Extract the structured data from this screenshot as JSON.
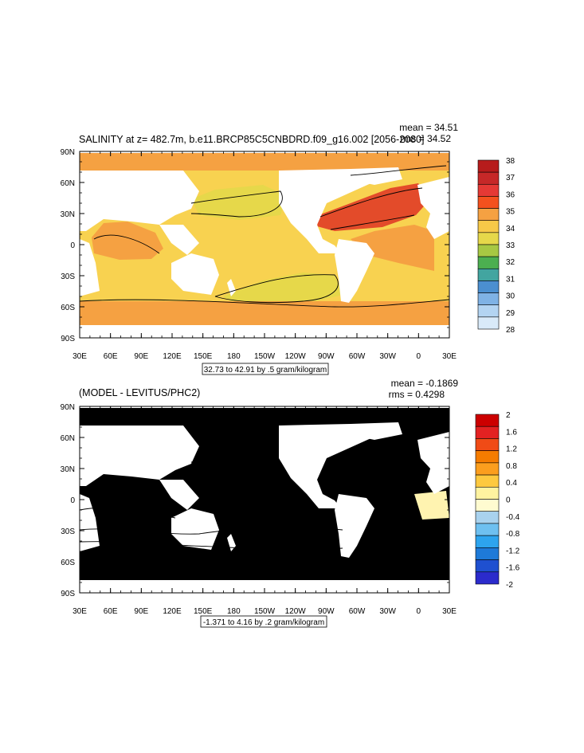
{
  "panels": [
    {
      "title": "SALINITY at z= 482.7m, b.e11.BRCP85C5CNBDRD.f09_g16.002 [2056-2080]",
      "stat_mean": "mean = 34.51",
      "stat_rms": "rms = 34.52",
      "contour_info": "32.73 to 42.91 by .5 gram/kilogram",
      "lat_labels": [
        "90N",
        "60N",
        "30N",
        "0",
        "30S",
        "60S",
        "90S"
      ],
      "lon_labels": [
        "30E",
        "60E",
        "90E",
        "120E",
        "150E",
        "180",
        "150W",
        "120W",
        "90W",
        "60W",
        "30W",
        "0",
        "30E"
      ],
      "colorbar": {
        "labels": [
          "38",
          "37",
          "36",
          "35",
          "34",
          "33",
          "32",
          "31",
          "30",
          "29",
          "28"
        ],
        "colors": [
          "#b71c1c",
          "#c62828",
          "#e53935",
          "#f4511e",
          "#f5a142",
          "#f7c948",
          "#e6d84a",
          "#a7c843",
          "#4caf50",
          "#42a5a0",
          "#4b8fd0",
          "#7fb2e5",
          "#b3d4f2",
          "#d9eaf9"
        ]
      },
      "fields": {
        "ocean_base": "#f8d250",
        "north_ring": "#f5a142",
        "north_atlantic": "#e34b2a",
        "southern_band": "#f5a142",
        "arabian": "#f5a142",
        "subtropical_south": "#e6d84a",
        "north_pacific": "#e6d84a"
      }
    },
    {
      "title": "(MODEL - LEVITUS/PHC2)",
      "stat_mean": "mean = -0.1869",
      "stat_rms": "rms = 0.4298",
      "contour_info": "-1.371 to 4.16 by .2 gram/kilogram",
      "lat_labels": [
        "90N",
        "60N",
        "30N",
        "0",
        "30S",
        "60S",
        "90S"
      ],
      "lon_labels": [
        "30E",
        "60E",
        "90E",
        "120E",
        "150E",
        "180",
        "150W",
        "120W",
        "90W",
        "60W",
        "30W",
        "0",
        "30E"
      ],
      "colorbar": {
        "labels": [
          "2",
          "1.6",
          "1.2",
          "0.8",
          "0.4",
          "0",
          "-0.4",
          "-0.8",
          "-1.2",
          "-1.6",
          "-2"
        ],
        "colors": [
          "#cc0000",
          "#e32222",
          "#f04b16",
          "#f57c00",
          "#fb9e1e",
          "#fdc93f",
          "#fff3a0",
          "#fffbd0",
          "#a9d2ee",
          "#6ec0f0",
          "#2da4ee",
          "#1e7ad8",
          "#1f50d0",
          "#2b2bcc"
        ]
      },
      "fields": {
        "ocean_base": "#9fcfee",
        "north_ring": "#fff3b0",
        "north_atlantic": "#fdc93f",
        "southern_band": "#fff3b0",
        "arabian": "#2da4ee",
        "subtropical_south": "#2da4ee",
        "north_pacific": "#fff3b0"
      }
    }
  ]
}
